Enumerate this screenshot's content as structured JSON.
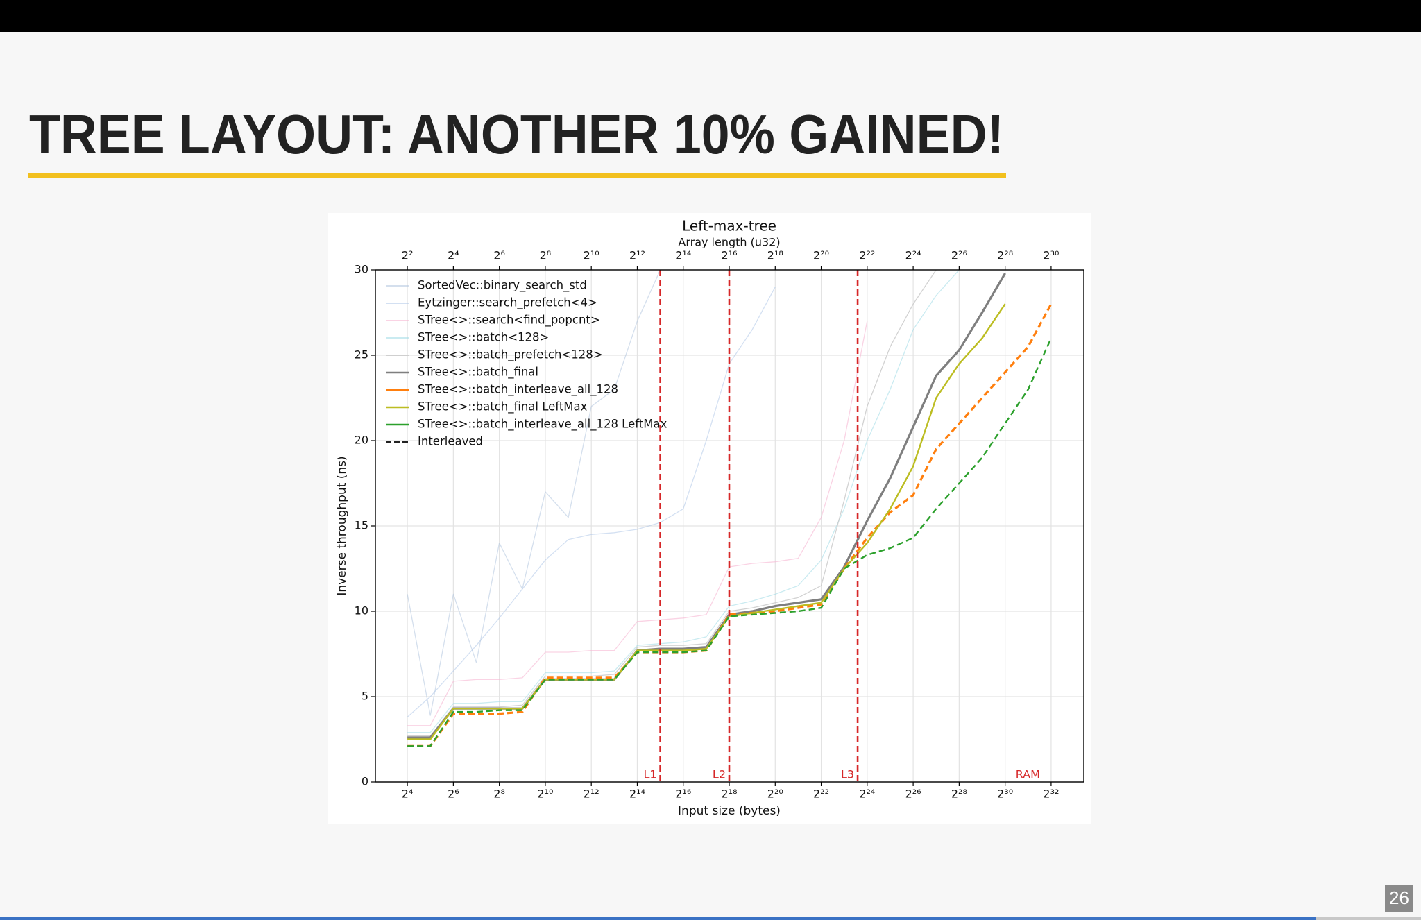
{
  "slide": {
    "title": "TREE LAYOUT: ANOTHER 10% GAINED!",
    "page_number": 26
  },
  "chart_data": {
    "type": "line",
    "title": "Left-max-tree",
    "x_label": "Input size (bytes)",
    "x2_label": "Array length (u32)",
    "y_label": "Inverse throughput (ns)",
    "xscale": "log2",
    "xlim": [
      6.1,
      11500000000
    ],
    "xticks": [
      {
        "value": 16,
        "label": "2⁴"
      },
      {
        "value": 64,
        "label": "2⁶"
      },
      {
        "value": 256,
        "label": "2⁸"
      },
      {
        "value": 1024,
        "label": "2¹⁰"
      },
      {
        "value": 4096,
        "label": "2¹²"
      },
      {
        "value": 16384,
        "label": "2¹⁴"
      },
      {
        "value": 65536,
        "label": "2¹⁶"
      },
      {
        "value": 262144,
        "label": "2¹⁸"
      },
      {
        "value": 1048576,
        "label": "2²⁰"
      },
      {
        "value": 4194304,
        "label": "2²²"
      },
      {
        "value": 16777216,
        "label": "2²⁴"
      },
      {
        "value": 67108864,
        "label": "2²⁶"
      },
      {
        "value": 268435456,
        "label": "2²⁸"
      },
      {
        "value": 1073741824,
        "label": "2³⁰"
      },
      {
        "value": 4294967296,
        "label": "2³²"
      }
    ],
    "x2lim": [
      1.525,
      2875000000
    ],
    "x2ticks": [
      {
        "value": 4,
        "label": "2²"
      },
      {
        "value": 16,
        "label": "2⁴"
      },
      {
        "value": 64,
        "label": "2⁶"
      },
      {
        "value": 256,
        "label": "2⁸"
      },
      {
        "value": 1024,
        "label": "2¹⁰"
      },
      {
        "value": 4096,
        "label": "2¹²"
      },
      {
        "value": 16384,
        "label": "2¹⁴"
      },
      {
        "value": 65536,
        "label": "2¹⁶"
      },
      {
        "value": 262144,
        "label": "2¹⁸"
      },
      {
        "value": 1048576,
        "label": "2²⁰"
      },
      {
        "value": 4194304,
        "label": "2²²"
      },
      {
        "value": 16777216,
        "label": "2²⁴"
      },
      {
        "value": 67108864,
        "label": "2²⁶"
      },
      {
        "value": 268435456,
        "label": "2²⁸"
      },
      {
        "value": 1073741824,
        "label": "2³⁰"
      }
    ],
    "ylim": [
      0,
      30
    ],
    "yticks": [
      0,
      5,
      10,
      15,
      20,
      25,
      30
    ],
    "grid": true,
    "legend": "upper left",
    "x": [
      16,
      32,
      64,
      128,
      256,
      512,
      1024,
      2048,
      4096,
      8192,
      16384,
      32768,
      65536,
      131072,
      262144,
      524288,
      1048576,
      2097152,
      4194304,
      8388608,
      16777216,
      33554432,
      67108864,
      134217728,
      268435456,
      536870912,
      1073741824,
      2147483648,
      4294967296
    ],
    "series": [
      {
        "name": "SortedVec::binary_search_std",
        "color": "#b0c4de",
        "alpha": 0.55,
        "width": 1.3,
        "dashed": false,
        "values": [
          11,
          3.9,
          11,
          7,
          14,
          11.3,
          17,
          15.5,
          22,
          23,
          27,
          30,
          null,
          null,
          null,
          null,
          null,
          null,
          null,
          null,
          null,
          null,
          null,
          null,
          null,
          null,
          null,
          null,
          null
        ]
      },
      {
        "name": "Eytzinger::search_prefetch<4>",
        "color": "#aec7e8",
        "alpha": 0.55,
        "width": 1.3,
        "dashed": false,
        "values": [
          3.8,
          5,
          6.5,
          8,
          9.6,
          11.3,
          13,
          14.2,
          14.5,
          14.6,
          14.8,
          15.2,
          16,
          20,
          24.5,
          26.5,
          29,
          null,
          null,
          null,
          null,
          null,
          null,
          null,
          null,
          null,
          null,
          null,
          null
        ]
      },
      {
        "name": "STree<>::search<find_popcnt>",
        "color": "#f7b6d2",
        "alpha": 0.6,
        "width": 1.3,
        "dashed": false,
        "values": [
          3.3,
          3.3,
          5.9,
          6.0,
          6.0,
          6.1,
          7.6,
          7.6,
          7.7,
          7.7,
          9.4,
          9.5,
          9.6,
          9.8,
          12.6,
          12.8,
          12.9,
          13.1,
          15.5,
          20,
          27,
          null,
          null,
          null,
          null,
          null,
          null,
          null,
          null
        ]
      },
      {
        "name": "STree<>::batch<128>",
        "color": "#9edae5",
        "alpha": 0.55,
        "width": 1.3,
        "dashed": false,
        "values": [
          2.9,
          2.9,
          4.6,
          4.6,
          4.7,
          4.7,
          6.4,
          6.4,
          6.4,
          6.5,
          8.0,
          8.1,
          8.2,
          8.5,
          10.3,
          10.6,
          11,
          11.5,
          13,
          16,
          20,
          23,
          26.5,
          28.5,
          30,
          null,
          null,
          null,
          null
        ]
      },
      {
        "name": "STree<>::batch_prefetch<128>",
        "color": "#c7c7c7",
        "alpha": 0.8,
        "width": 1.3,
        "dashed": false,
        "values": [
          2.7,
          2.7,
          4.4,
          4.4,
          4.4,
          4.5,
          6.2,
          6.2,
          6.2,
          6.3,
          7.9,
          8.0,
          8.0,
          8.1,
          10.0,
          10.2,
          10.5,
          10.8,
          11.5,
          16.5,
          22,
          25.5,
          28,
          30,
          null,
          null,
          null,
          null,
          null
        ]
      },
      {
        "name": "STree<>::batch_final",
        "color": "#7f7f7f",
        "alpha": 1,
        "width": 3.2,
        "dashed": false,
        "values": [
          2.6,
          2.6,
          4.3,
          4.3,
          4.3,
          4.3,
          6.0,
          6.0,
          6.0,
          6.0,
          7.7,
          7.8,
          7.8,
          7.9,
          9.8,
          10.0,
          10.3,
          10.5,
          10.7,
          12.6,
          15.3,
          17.8,
          20.8,
          23.8,
          25.3,
          27.5,
          29.8,
          null,
          null
        ]
      },
      {
        "name": "STree<>::batch_interleave_all_128",
        "color": "#ff7f0e",
        "alpha": 1,
        "width": 3.2,
        "dashed": true,
        "values": [
          2.1,
          2.1,
          4.0,
          4.0,
          4.0,
          4.1,
          6.1,
          6.1,
          6.1,
          6.1,
          7.6,
          7.6,
          7.6,
          7.7,
          9.8,
          9.9,
          10.0,
          10.2,
          10.4,
          12.5,
          14.3,
          15.8,
          16.8,
          19.5,
          21.0,
          22.5,
          24.0,
          25.5,
          28.0
        ]
      },
      {
        "name": "STree<>::batch_final LeftMax",
        "color": "#bcbd22",
        "alpha": 1,
        "width": 2.4,
        "dashed": false,
        "values": [
          2.5,
          2.5,
          4.3,
          4.3,
          4.3,
          4.3,
          6.0,
          6.0,
          6.0,
          6.0,
          7.7,
          7.7,
          7.7,
          7.8,
          9.7,
          9.9,
          10.1,
          10.3,
          10.5,
          12.5,
          14.0,
          16.0,
          18.5,
          22.5,
          24.5,
          26.0,
          28.0,
          null,
          null
        ]
      },
      {
        "name": "STree<>::batch_interleave_all_128 LeftMax",
        "color": "#2ca02c",
        "alpha": 1,
        "width": 2.4,
        "dashed": true,
        "values": [
          2.1,
          2.1,
          4.1,
          4.1,
          4.2,
          4.2,
          6.0,
          6.0,
          6.0,
          6.0,
          7.6,
          7.6,
          7.6,
          7.7,
          9.7,
          9.8,
          9.9,
          10.0,
          10.2,
          12.5,
          13.3,
          13.7,
          14.3,
          16.0,
          17.5,
          19.0,
          21.0,
          23.0,
          26.0
        ]
      }
    ],
    "style_legend": [
      {
        "name": "Interleaved",
        "color": "#222222",
        "dashed": true
      }
    ],
    "cache_boundaries": [
      32768,
      262144,
      12582912
    ],
    "boundary_color": "#d62728",
    "region_labels": [
      "L1",
      "L2",
      "L3",
      "RAM"
    ]
  }
}
